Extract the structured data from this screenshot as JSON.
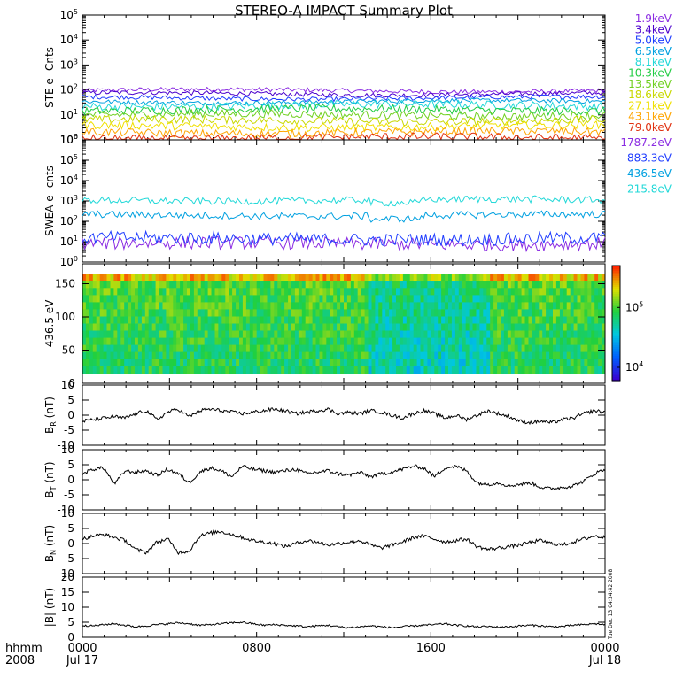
{
  "title": "STEREO-A IMPACT Summary Plot",
  "footer": {
    "time_label": "hhmm",
    "year_label": "2008",
    "side_stamp": "Tue Dec 13 04:34:42 2008",
    "x_ticks": [
      {
        "label": "0000",
        "sub": "Jul 17",
        "hour": 0
      },
      {
        "label": "0800",
        "sub": "",
        "hour": 8
      },
      {
        "label": "1600",
        "sub": "",
        "hour": 16
      },
      {
        "label": "0000",
        "sub": "Jul 18",
        "hour": 24
      }
    ]
  },
  "chart_data": [
    {
      "id": "ste",
      "type": "line",
      "ylabel": "STE e- Cnts",
      "scale": "log",
      "ylim": [
        1,
        100000
      ],
      "ytick_exponents": [
        0,
        1,
        2,
        3,
        4,
        5
      ],
      "series": [
        {
          "name": "1.9keV",
          "color": "#8a2be2",
          "level": 95
        },
        {
          "name": "3.4keV",
          "color": "#4b00cc",
          "level": 70
        },
        {
          "name": "5.0keV",
          "color": "#1f3dff",
          "level": 48
        },
        {
          "name": "6.5keV",
          "color": "#00a0e0",
          "level": 34
        },
        {
          "name": "8.1keV",
          "color": "#22d8d8",
          "level": 24
        },
        {
          "name": "10.3keV",
          "color": "#22cc44",
          "level": 16
        },
        {
          "name": "13.5keV",
          "color": "#70d020",
          "level": 10
        },
        {
          "name": "18.6keV",
          "color": "#c8d800",
          "level": 6
        },
        {
          "name": "27.1keV",
          "color": "#f0e000",
          "level": 3.5
        },
        {
          "name": "43.1keV",
          "color": "#ffa500",
          "level": 2
        },
        {
          "name": "79.0keV",
          "color": "#e03010",
          "level": 1.2
        }
      ]
    },
    {
      "id": "swea",
      "type": "line",
      "ylabel": "SWEA e- cnts",
      "scale": "log",
      "ylim": [
        1,
        1000000
      ],
      "ytick_exponents": [
        0,
        1,
        2,
        3,
        4,
        5,
        6
      ],
      "series": [
        {
          "name": "1787.2eV",
          "color": "#8a2be2",
          "level": 8
        },
        {
          "name": "883.3eV",
          "color": "#1f3dff",
          "level": 14
        },
        {
          "name": "436.5eV",
          "color": "#00a0e0",
          "level": 200
        },
        {
          "name": "215.8eV",
          "color": "#22d8d8",
          "level": 1100
        }
      ]
    },
    {
      "id": "pad",
      "type": "heatmap",
      "ylabel": "436.5 eV",
      "ylim": [
        0,
        180
      ],
      "yticks": [
        0,
        50,
        100,
        150
      ],
      "color_scale": "log",
      "zlim": [
        6000,
        500000
      ],
      "colorbar_ticks": [
        {
          "base": "10",
          "exp": "4",
          "value": 10000
        },
        {
          "base": "10",
          "exp": "5",
          "value": 100000
        }
      ]
    },
    {
      "id": "br",
      "type": "line",
      "ylabel_main": "B",
      "ylabel_sub": "R",
      "ylabel_unit": "(nT)",
      "ylim": [
        -10,
        10
      ],
      "yticks": [
        -10,
        -5,
        0,
        5,
        10
      ],
      "series": [
        {
          "name": "",
          "color": "#000000",
          "values": [
            -2.0,
            -1.5,
            -1.0,
            -0.5,
            -1.0,
            0.5,
            1.5,
            -1.5,
            1.0,
            2.0,
            -0.5,
            1.5,
            2.0,
            1.5,
            1.0,
            0.5,
            1.0,
            1.5,
            2.0,
            1.5,
            0.5,
            1.0,
            1.5,
            2.0,
            0.5,
            1.0,
            0.5,
            1.5,
            1.0,
            0.0,
            -1.0,
            0.5,
            1.5,
            0.5,
            -1.0,
            0.0,
            -1.5,
            0.0,
            1.5,
            0.5,
            -0.5,
            -2.0,
            -2.5,
            -2.0,
            -2.5,
            -1.5,
            -1.0,
            0.5,
            1.5,
            1.0
          ]
        }
      ]
    },
    {
      "id": "bt",
      "type": "line",
      "ylabel_main": "B",
      "ylabel_sub": "T",
      "ylabel_unit": "(nT)",
      "ylim": [
        -10,
        10
      ],
      "yticks": [
        -10,
        -5,
        0,
        5,
        10
      ],
      "series": [
        {
          "name": "",
          "color": "#000000",
          "values": [
            2.0,
            3.5,
            4.0,
            -1.5,
            3.0,
            2.5,
            3.0,
            1.5,
            3.5,
            2.0,
            -1.0,
            2.5,
            4.0,
            3.0,
            1.0,
            4.5,
            3.5,
            3.0,
            2.5,
            3.0,
            3.5,
            2.0,
            2.5,
            3.0,
            2.0,
            1.5,
            2.5,
            1.0,
            2.0,
            2.5,
            3.5,
            4.5,
            4.0,
            1.0,
            4.0,
            4.5,
            3.0,
            -1.0,
            -1.5,
            -1.0,
            -2.0,
            -1.5,
            -1.0,
            -2.5,
            -3.0,
            -2.5,
            -2.0,
            -0.5,
            2.0,
            3.5
          ]
        }
      ]
    },
    {
      "id": "bn",
      "type": "line",
      "ylabel_main": "B",
      "ylabel_sub": "N",
      "ylabel_unit": "(nT)",
      "ylim": [
        -10,
        10
      ],
      "yticks": [
        -10,
        -5,
        0,
        5,
        10
      ],
      "series": [
        {
          "name": "",
          "color": "#000000",
          "values": [
            1.5,
            2.5,
            3.0,
            2.0,
            1.0,
            -2.0,
            -3.0,
            0.5,
            1.5,
            -3.0,
            -2.5,
            2.5,
            3.5,
            4.0,
            3.0,
            2.0,
            1.0,
            0.5,
            0.0,
            -1.0,
            0.0,
            1.0,
            0.5,
            -0.5,
            0.0,
            0.5,
            1.0,
            -0.5,
            -1.5,
            -0.5,
            0.5,
            2.0,
            2.5,
            1.5,
            0.5,
            1.0,
            1.5,
            -1.0,
            -2.0,
            -1.5,
            -1.0,
            -0.5,
            0.5,
            1.0,
            0.0,
            -0.5,
            0.5,
            1.5,
            2.5,
            2.0
          ]
        }
      ]
    },
    {
      "id": "bmag",
      "type": "line",
      "ylabel": "|B| (nT)",
      "ylim": [
        0,
        20
      ],
      "yticks": [
        0,
        5,
        10,
        15,
        20
      ],
      "series": [
        {
          "name": "",
          "color": "#000000",
          "values": [
            4.0,
            3.8,
            4.2,
            4.5,
            4.0,
            3.5,
            3.8,
            4.2,
            4.5,
            4.8,
            4.5,
            4.0,
            4.2,
            4.5,
            4.8,
            5.0,
            4.5,
            4.0,
            4.2,
            4.0,
            3.8,
            3.5,
            3.8,
            4.0,
            3.5,
            3.2,
            3.5,
            3.8,
            3.5,
            3.2,
            3.5,
            3.8,
            4.0,
            4.2,
            4.5,
            4.0,
            3.8,
            3.5,
            3.6,
            3.4,
            3.5,
            3.8,
            4.0,
            3.8,
            3.5,
            3.6,
            4.0,
            4.2,
            4.5,
            4.2
          ]
        }
      ]
    }
  ]
}
